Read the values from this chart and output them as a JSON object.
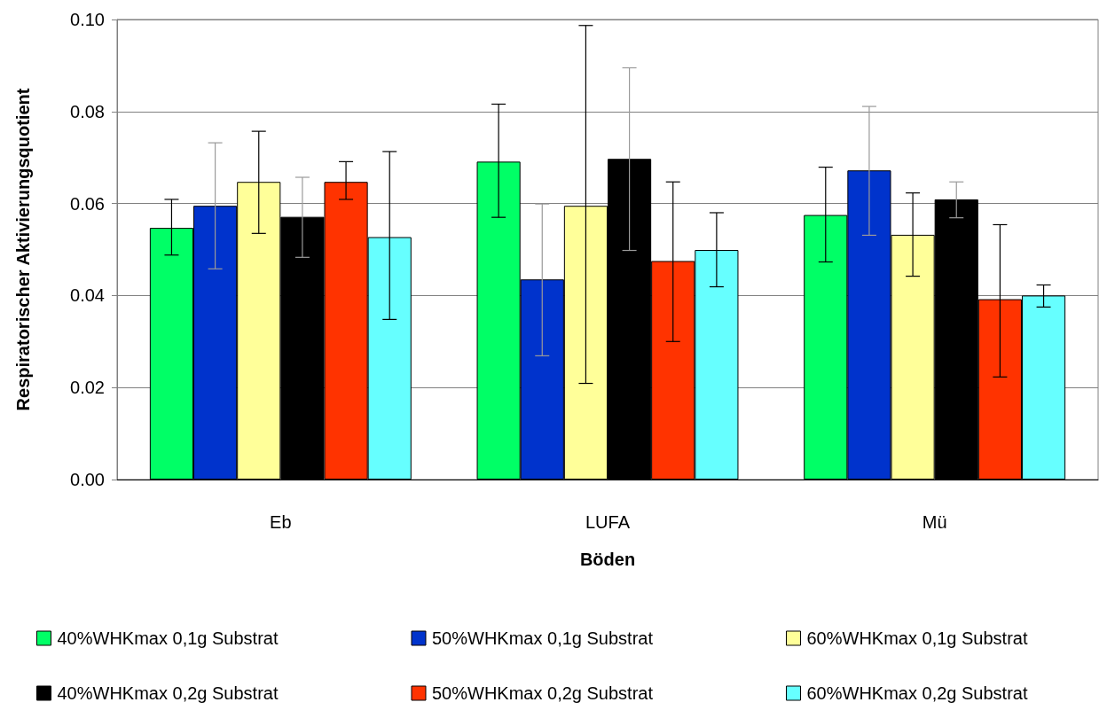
{
  "chart_data": {
    "type": "bar",
    "xlabel": "Böden",
    "ylabel": "Respiratorischer Aktivierungsquotient",
    "categories": [
      "Eb",
      "LUFA",
      "Mü"
    ],
    "series": [
      {
        "name": "40%WHKmax 0,1g Substrat",
        "color": "#00ff66",
        "values": [
          0.0547,
          0.0691,
          0.0575
        ],
        "errors": [
          [
            0.0488,
            0.0609
          ],
          [
            0.057,
            0.0816
          ],
          [
            0.0473,
            0.0679
          ]
        ]
      },
      {
        "name": "50%WHKmax 0,1g Substrat",
        "color": "#0033cc",
        "values": [
          0.0595,
          0.0435,
          0.0672
        ],
        "errors": [
          [
            0.0458,
            0.0732
          ],
          [
            0.0269,
            0.0599
          ],
          [
            0.0531,
            0.0811
          ]
        ]
      },
      {
        "name": "60%WHKmax 0,1g Substrat",
        "color": "#ffff99",
        "values": [
          0.0647,
          0.0595,
          0.0532
        ],
        "errors": [
          [
            0.0535,
            0.0757
          ],
          [
            0.0209,
            0.0987
          ],
          [
            0.0442,
            0.0623
          ]
        ]
      },
      {
        "name": "40%WHKmax 0,2g Substrat",
        "color": "#000000",
        "values": [
          0.0571,
          0.0697,
          0.0609
        ],
        "errors": [
          [
            0.0483,
            0.0657
          ],
          [
            0.0498,
            0.0895
          ],
          [
            0.0569,
            0.0647
          ]
        ]
      },
      {
        "name": "50%WHKmax 0,2g Substrat",
        "color": "#ff3300",
        "values": [
          0.0647,
          0.0475,
          0.0392
        ],
        "errors": [
          [
            0.0609,
            0.0691
          ],
          [
            0.03,
            0.0647
          ],
          [
            0.0223,
            0.0554
          ]
        ]
      },
      {
        "name": "60%WHKmax 0,2g Substrat",
        "color": "#66ffff",
        "values": [
          0.0527,
          0.0499,
          0.04
        ],
        "errors": [
          [
            0.0348,
            0.0713
          ],
          [
            0.0419,
            0.058
          ],
          [
            0.0375,
            0.0423
          ]
        ]
      }
    ],
    "ylim": [
      0,
      0.1
    ],
    "yticks": [
      {
        "value": 0,
        "label": "0.00"
      },
      {
        "value": 0.02,
        "label": "0.02"
      },
      {
        "value": 0.04,
        "label": "0.04"
      },
      {
        "value": 0.06,
        "label": "0.06"
      },
      {
        "value": 0.08,
        "label": "0.08"
      },
      {
        "value": 0.1,
        "label": "0.10"
      }
    ],
    "grid": "y",
    "legend": "bottom"
  }
}
